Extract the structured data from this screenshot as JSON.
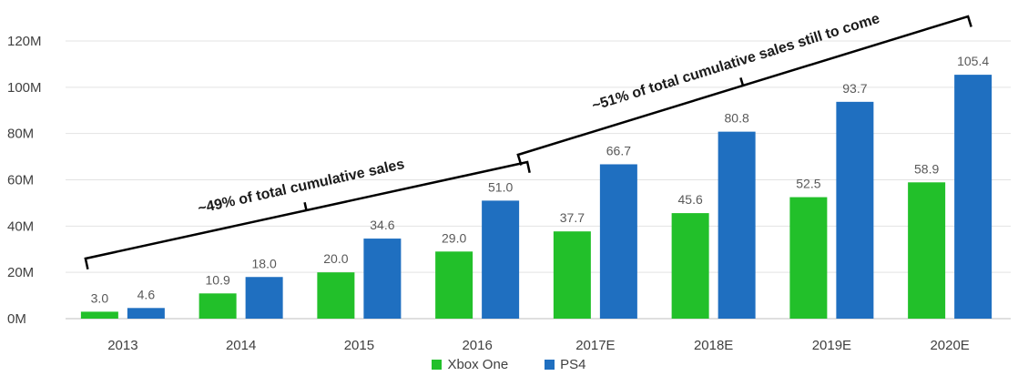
{
  "chart_data": {
    "type": "bar",
    "categories": [
      "2013",
      "2014",
      "2015",
      "2016",
      "2017E",
      "2018E",
      "2019E",
      "2020E"
    ],
    "series": [
      {
        "name": "Xbox One",
        "values": [
          3.0,
          10.9,
          20.0,
          29.0,
          37.7,
          45.6,
          52.5,
          58.9
        ],
        "color": "#22c02a"
      },
      {
        "name": "PS4",
        "values": [
          4.6,
          18.0,
          34.6,
          51.0,
          66.7,
          80.8,
          93.7,
          105.4
        ],
        "color": "#1f6fc0"
      }
    ],
    "value_labels": {
      "Xbox One": [
        "3.0",
        "10.9",
        "20.0",
        "29.0",
        "37.7",
        "45.6",
        "52.5",
        "58.9"
      ],
      "PS4": [
        "4.6",
        "18.0",
        "34.6",
        "51.0",
        "66.7",
        "80.8",
        "93.7",
        "105.4"
      ]
    },
    "yticks": [
      "0M",
      "20M",
      "40M",
      "60M",
      "80M",
      "100M",
      "120M"
    ],
    "ylim": [
      0,
      120
    ],
    "grid": true,
    "legend_position": "bottom",
    "annotations": [
      {
        "text": "~49% of total cumulative sales",
        "covers": [
          "2013",
          "2016"
        ]
      },
      {
        "text": "~51% of total cumulative sales still to come",
        "covers": [
          "2017E",
          "2020E"
        ]
      }
    ],
    "title": "",
    "xlabel": "",
    "ylabel": ""
  }
}
